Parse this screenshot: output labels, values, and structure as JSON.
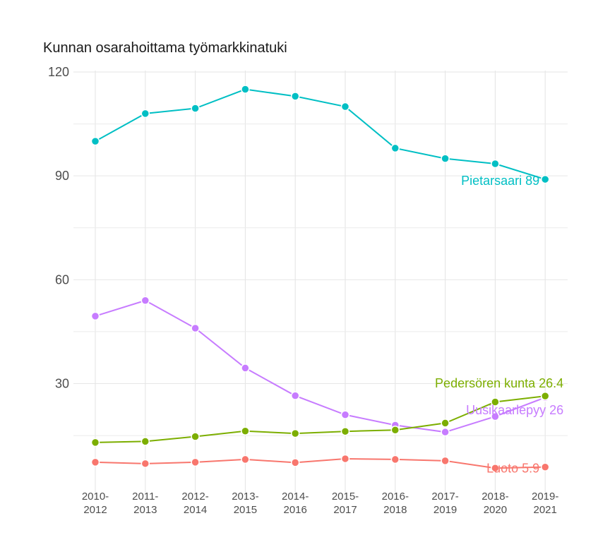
{
  "chart_data": {
    "type": "line",
    "title": "Kunnan osarahoittama työmarkkinatuki",
    "xlabel": "",
    "ylabel": "",
    "categories": [
      "2010-2012",
      "2011-2013",
      "2012-2014",
      "2013-2015",
      "2014-2016",
      "2015-2017",
      "2016-2018",
      "2017-2019",
      "2018-2020",
      "2019-2021"
    ],
    "category_lines": [
      [
        "2010-",
        "2012"
      ],
      [
        "2011-",
        "2013"
      ],
      [
        "2012-",
        "2014"
      ],
      [
        "2013-",
        "2015"
      ],
      [
        "2014-",
        "2016"
      ],
      [
        "2015-",
        "2017"
      ],
      [
        "2016-",
        "2018"
      ],
      [
        "2017-",
        "2019"
      ],
      [
        "2018-",
        "2020"
      ],
      [
        "2019-",
        "2021"
      ]
    ],
    "ylim": [
      -2,
      120
    ],
    "yticks": [
      30,
      60,
      90,
      120
    ],
    "grid": true,
    "legend": "end-labels",
    "series": [
      {
        "name": "Pietarsaari",
        "end_label": "Pietarsaari 89",
        "color": "#00BFC4",
        "values": [
          100,
          108,
          109.5,
          115,
          113,
          110,
          98,
          95,
          93.5,
          89
        ]
      },
      {
        "name": "Uusikaarlepyy",
        "end_label": "Uusikaarlepyy 26",
        "color": "#C77CFF",
        "values": [
          49.5,
          54,
          46,
          34.5,
          26.5,
          21,
          18,
          16,
          20.5,
          26
        ]
      },
      {
        "name": "Pedersören kunta",
        "end_label": "Pedersören kunta 26.4",
        "color": "#7CAE00",
        "values": [
          13,
          13.3,
          14.7,
          16.3,
          15.6,
          16.2,
          16.6,
          18.6,
          24.7,
          26.4
        ]
      },
      {
        "name": "Luoto",
        "end_label": "Luoto 5.9",
        "color": "#F8766D",
        "values": [
          7.3,
          6.9,
          7.3,
          8.1,
          7.2,
          8.3,
          8.1,
          7.7,
          5.6,
          5.9
        ]
      }
    ]
  }
}
